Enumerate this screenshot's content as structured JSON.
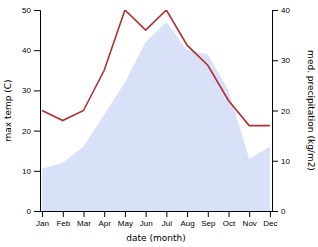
{
  "chart_data": {
    "type": "line",
    "x_label": "date (month)",
    "y_label": "max temp (C)",
    "y2_label": "med. precipitation (kg/m2)",
    "categories": [
      "Jan",
      "Feb",
      "Mar",
      "Apr",
      "May",
      "Jun",
      "Jul",
      "Aug",
      "Sep",
      "Oct",
      "Nov",
      "Dec"
    ],
    "series": [
      {
        "type": "area",
        "color": "#b8c8f0",
        "values": [
          10.5,
          12,
          16,
          24,
          32,
          42,
          47,
          40,
          39,
          30,
          13,
          16
        ]
      },
      {
        "type": "line",
        "color": "#b03030",
        "axis": "y2",
        "values": [
          20,
          18,
          20,
          28,
          40,
          36,
          40,
          33,
          29,
          22,
          17,
          17
        ]
      }
    ],
    "ylim": [
      0,
      50
    ],
    "yticks": [
      0,
      10,
      20,
      30,
      40,
      50
    ],
    "y2lim": [
      0,
      40
    ],
    "y2ticks": [
      0,
      10,
      20,
      30,
      40
    ]
  }
}
